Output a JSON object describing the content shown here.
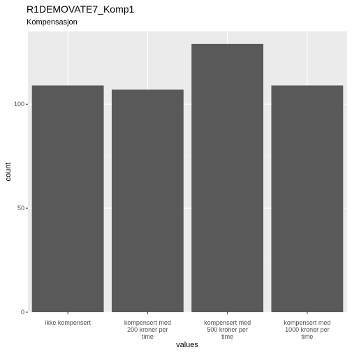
{
  "chart_data": {
    "type": "bar",
    "title": "R1DEMOVATE7_Komp1",
    "subtitle": "Kompensasjon",
    "xlabel": "values",
    "ylabel": "count",
    "categories": [
      [
        "ikke kompensert"
      ],
      [
        "kompensert med",
        "200 kroner per",
        "time"
      ],
      [
        "kompensert med",
        "500 kroner per",
        "time"
      ],
      [
        "kompensert med",
        "1000 kroner per",
        "time"
      ]
    ],
    "values": [
      109,
      107,
      129,
      109
    ],
    "ylim": [
      0,
      135
    ],
    "yticks": [
      0,
      50,
      100
    ],
    "ytick_labels": [
      "0",
      "50",
      "100"
    ],
    "grid": true,
    "colors": {
      "bar": "#595959",
      "panel": "#ebebeb",
      "grid_major": "#ffffff",
      "grid_minor": "#f5f5f5"
    }
  }
}
